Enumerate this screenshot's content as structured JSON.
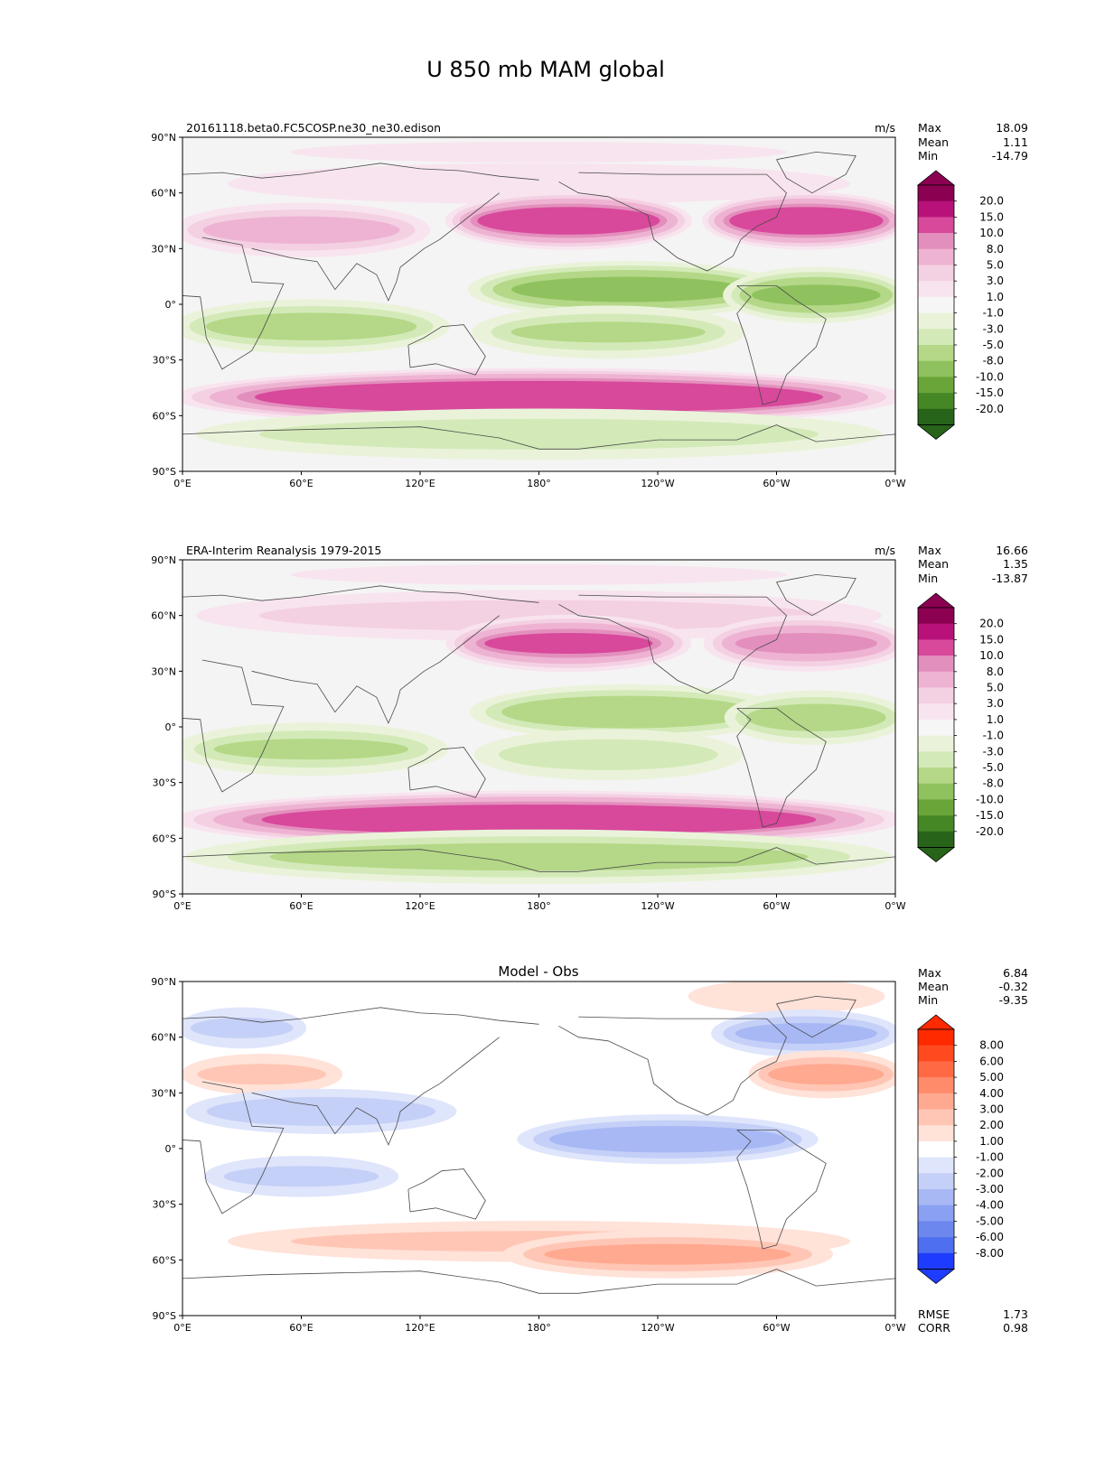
{
  "figure": {
    "title": "U 850 mb MAM global"
  },
  "colors": {
    "panel_bg": "#f4f4f4",
    "diff_bg": "#ffffff",
    "coast": "#4a4a4a",
    "pos_levels": [
      "#f8e4ef",
      "#f4d0e3",
      "#eeb3d2",
      "#e38fbd",
      "#d8489b",
      "#b8127a",
      "#8c0052"
    ],
    "neg_levels": [
      "#eaf3da",
      "#d3eab8",
      "#b4d887",
      "#8fc25e",
      "#6aa53a",
      "#458724",
      "#276419"
    ],
    "diff_pos": [
      "#ffe2d8",
      "#ffc6b5",
      "#ffa991",
      "#ff8b6b",
      "#ff6a45",
      "#ff4a20",
      "#ff2a00"
    ],
    "diff_neg": [
      "#dfe5fb",
      "#c5d0f8",
      "#a8b8f5",
      "#8aa0f2",
      "#6c88ef",
      "#4d6ff0",
      "#1e3cff"
    ]
  },
  "panels": [
    {
      "label": "20161118.beta0.FC5COSP.ne30_ne30.edison",
      "units": "m/s",
      "stats": [
        {
          "name": "Max",
          "value": "18.09"
        },
        {
          "name": "Mean",
          "value": "1.11"
        },
        {
          "name": "Min",
          "value": "-14.79"
        }
      ]
    },
    {
      "label": "ERA-Interim Reanalysis 1979-2015",
      "units": "m/s",
      "stats": [
        {
          "name": "Max",
          "value": "16.66"
        },
        {
          "name": "Mean",
          "value": "1.35"
        },
        {
          "name": "Min",
          "value": "-13.87"
        }
      ]
    },
    {
      "title": "Model - Obs",
      "stats": [
        {
          "name": "Max",
          "value": "6.84"
        },
        {
          "name": "Mean",
          "value": "-0.32"
        },
        {
          "name": "Min",
          "value": "-9.35"
        }
      ],
      "bottom_stats": [
        {
          "name": "RMSE",
          "value": "1.73"
        },
        {
          "name": "CORR",
          "value": "0.98"
        }
      ]
    }
  ],
  "chart_data": [
    {
      "type": "heatmap",
      "title": "20161118.beta0.FC5COSP.ne30_ne30.edison",
      "units": "m/s",
      "x_ticks": [
        "0°E",
        "60°E",
        "120°E",
        "180°",
        "120°W",
        "60°W",
        "0°W"
      ],
      "y_ticks": [
        "90°N",
        "60°N",
        "30°N",
        "0°",
        "30°S",
        "60°S",
        "90°S"
      ],
      "xlim": [
        0,
        360
      ],
      "ylim": [
        -90,
        90
      ],
      "colorbar_levels": [
        "20.0",
        "15.0",
        "10.0",
        "8.0",
        "5.0",
        "3.0",
        "1.0",
        "-1.0",
        "-3.0",
        "-5.0",
        "-8.0",
        "-10.0",
        "-15.0",
        "-20.0"
      ],
      "bands": [
        {
          "lat": 82,
          "lon0": 0,
          "lon1": 360,
          "value": 1
        },
        {
          "lat": 65,
          "lon0": 0,
          "lon1": 360,
          "value": 2
        },
        {
          "lat": 45,
          "lon0": 140,
          "lon1": 250,
          "value": 12
        },
        {
          "lat": 45,
          "lon0": 270,
          "lon1": 360,
          "value": 12
        },
        {
          "lat": 40,
          "lon0": 0,
          "lon1": 120,
          "value": 6
        },
        {
          "lat": 8,
          "lon0": 150,
          "lon1": 300,
          "value": -9
        },
        {
          "lat": 5,
          "lon0": 280,
          "lon1": 360,
          "value": -8
        },
        {
          "lat": -12,
          "lon0": 0,
          "lon1": 130,
          "value": -6
        },
        {
          "lat": -15,
          "lon0": 150,
          "lon1": 280,
          "value": -5
        },
        {
          "lat": -50,
          "lon0": 0,
          "lon1": 360,
          "value": 14
        },
        {
          "lat": -70,
          "lon0": 0,
          "lon1": 360,
          "value": -4
        }
      ]
    },
    {
      "type": "heatmap",
      "title": "ERA-Interim Reanalysis 1979-2015",
      "units": "m/s",
      "x_ticks": [
        "0°E",
        "60°E",
        "120°E",
        "180°",
        "120°W",
        "60°W",
        "0°W"
      ],
      "y_ticks": [
        "90°N",
        "60°N",
        "30°N",
        "0°",
        "30°S",
        "60°S",
        "90°S"
      ],
      "xlim": [
        0,
        360
      ],
      "ylim": [
        -90,
        90
      ],
      "colorbar_levels": [
        "20.0",
        "15.0",
        "10.0",
        "8.0",
        "5.0",
        "3.0",
        "1.0",
        "-1.0",
        "-3.0",
        "-5.0",
        "-8.0",
        "-10.0",
        "-15.0",
        "-20.0"
      ],
      "bands": [
        {
          "lat": 82,
          "lon0": 0,
          "lon1": 360,
          "value": 1
        },
        {
          "lat": 60,
          "lon0": 0,
          "lon1": 360,
          "value": 4
        },
        {
          "lat": 45,
          "lon0": 140,
          "lon1": 250,
          "value": 10
        },
        {
          "lat": 45,
          "lon0": 270,
          "lon1": 360,
          "value": 8
        },
        {
          "lat": 8,
          "lon0": 150,
          "lon1": 300,
          "value": -7
        },
        {
          "lat": 5,
          "lon0": 280,
          "lon1": 360,
          "value": -6
        },
        {
          "lat": -12,
          "lon0": 0,
          "lon1": 130,
          "value": -5
        },
        {
          "lat": -15,
          "lon0": 150,
          "lon1": 280,
          "value": -4
        },
        {
          "lat": -50,
          "lon0": 0,
          "lon1": 360,
          "value": 13
        },
        {
          "lat": -70,
          "lon0": 0,
          "lon1": 360,
          "value": -6
        }
      ]
    },
    {
      "type": "heatmap",
      "title": "Model - Obs",
      "x_ticks": [
        "0°E",
        "60°E",
        "120°E",
        "180°",
        "120°W",
        "60°W",
        "0°W"
      ],
      "y_ticks": [
        "90°N",
        "60°N",
        "30°N",
        "0°",
        "30°S",
        "60°S",
        "90°S"
      ],
      "xlim": [
        0,
        360
      ],
      "ylim": [
        -90,
        90
      ],
      "colorbar_levels": [
        "8.00",
        "6.00",
        "5.00",
        "4.00",
        "3.00",
        "2.00",
        "1.00",
        "-1.00",
        "-2.00",
        "-3.00",
        "-4.00",
        "-5.00",
        "-6.00",
        "-8.00"
      ],
      "bands": [
        {
          "lat": 82,
          "lon0": 250,
          "lon1": 360,
          "value": 1.5
        },
        {
          "lat": 65,
          "lon0": 0,
          "lon1": 60,
          "value": -2
        },
        {
          "lat": 62,
          "lon0": 270,
          "lon1": 360,
          "value": -3
        },
        {
          "lat": 40,
          "lon0": 0,
          "lon1": 80,
          "value": 2
        },
        {
          "lat": 40,
          "lon0": 290,
          "lon1": 360,
          "value": 3
        },
        {
          "lat": 20,
          "lon0": 0,
          "lon1": 140,
          "value": -2.5
        },
        {
          "lat": 5,
          "lon0": 170,
          "lon1": 320,
          "value": -3.5
        },
        {
          "lat": -15,
          "lon0": 10,
          "lon1": 110,
          "value": -2
        },
        {
          "lat": -50,
          "lon0": 0,
          "lon1": 360,
          "value": 2
        },
        {
          "lat": -57,
          "lon0": 160,
          "lon1": 330,
          "value": 3
        }
      ]
    }
  ]
}
